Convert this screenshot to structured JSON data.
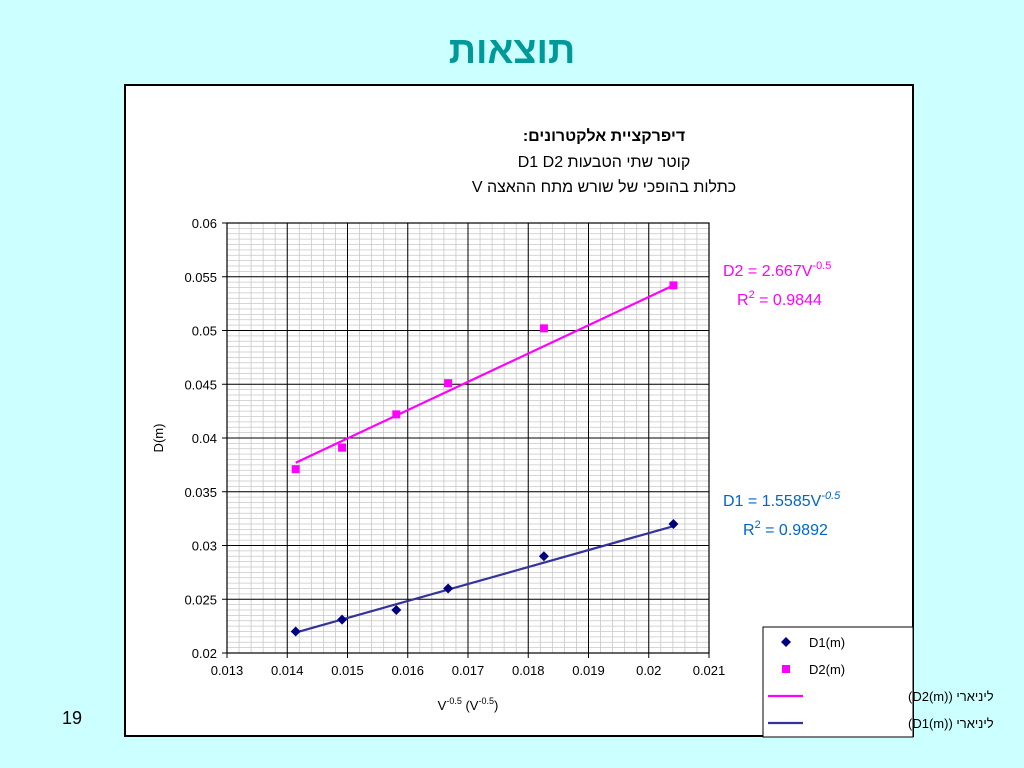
{
  "slide": {
    "title": "תוצאות",
    "number": "19"
  },
  "chart_data": {
    "type": "scatter",
    "title_lines": [
      "דיפרקציית אלקטרונים:",
      "קוטר שתי הטבעות D1 D2",
      "כתלות בהופכי של שורש מתח ההאצה V"
    ],
    "xlabel": "V-0.5 (V-0.5)",
    "ylabel": "D(m)",
    "xlim": [
      0.013,
      0.021
    ],
    "ylim": [
      0.02,
      0.06
    ],
    "x_ticks": [
      "0.013",
      "0.014",
      "0.015",
      "0.016",
      "0.017",
      "0.018",
      "0.019",
      "0.02",
      "0.021"
    ],
    "y_ticks": [
      "0.02",
      "0.025",
      "0.03",
      "0.035",
      "0.04",
      "0.045",
      "0.05",
      "0.055",
      "0.06"
    ],
    "grid": true,
    "legend_position": "bottom-right",
    "series": [
      {
        "name": "D1(m)",
        "marker": "diamond",
        "color": "#000080",
        "x": [
          0.01414,
          0.01491,
          0.01581,
          0.01667,
          0.01826,
          0.02041
        ],
        "y": [
          0.022,
          0.0231,
          0.024,
          0.026,
          0.029,
          0.032
        ]
      },
      {
        "name": "D2(m)",
        "marker": "square",
        "color": "#ff00ff",
        "x": [
          0.01414,
          0.01491,
          0.01581,
          0.01667,
          0.01826,
          0.02041
        ],
        "y": [
          0.0371,
          0.0391,
          0.0422,
          0.0451,
          0.0502,
          0.0542
        ]
      }
    ],
    "trendlines": [
      {
        "name": "ליניארי (D2(m))",
        "color": "#ff00ff",
        "x": [
          0.01414,
          0.02041
        ],
        "y": [
          0.0377,
          0.0542
        ]
      },
      {
        "name": "ליניארי (D1(m))",
        "color": "#333399",
        "x": [
          0.01414,
          0.02041
        ],
        "y": [
          0.0219,
          0.0318
        ]
      }
    ],
    "annotations": [
      {
        "text": "D2 = 2.667V",
        "sup": "-0.5",
        "r2_base": "R",
        "r2_sup": "2",
        "r2_rest": " = 0.9844",
        "color": "#ff00ff"
      },
      {
        "text": "D1 = 1.5585V",
        "sup": "-0.5",
        "r2_base": "R",
        "r2_sup": "2",
        "r2_rest": " = 0.9892",
        "color": "#0066cc"
      }
    ]
  }
}
